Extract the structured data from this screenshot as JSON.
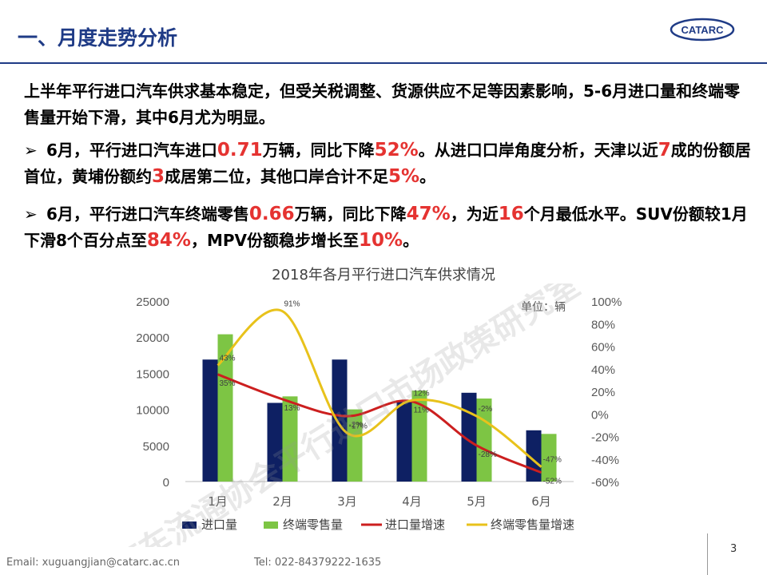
{
  "header": {
    "title": "一、月度走势分析",
    "logo_text": "CATARC"
  },
  "paragraphs": {
    "p1": "上半年平行进口汽车供求基本稳定，但受关税调整、货源供应不足等因素影响，5-6月进口量和终端零售量开始下滑，其中6月尤为明显。",
    "p2": {
      "bullet": "➢",
      "t1": "6月，平行进口汽车进口",
      "h1": "0.71",
      "t2": "万辆，同比下降",
      "h2": "52%",
      "t3": "。从进口口岸角度分析，天津以近",
      "h3": "7",
      "t4": "成的份额居首位，黄埔份额约",
      "h4": "3",
      "t5": "成居第二位，其他口岸合计不足",
      "h5": "5%",
      "t6": "。"
    },
    "p3": {
      "bullet": "➢",
      "t1": "6月，平行进口汽车终端零售",
      "h1": "0.66",
      "t2": "万辆，同比下降",
      "h2": "47%",
      "t3": "，为近",
      "h3": "16",
      "t4": "个月最低水平。SUV份额较1月下滑8个百分点至",
      "h4": "84%",
      "t5": "，MPV份额稳步增长至",
      "h5": "10%",
      "t6": "。"
    }
  },
  "chart_data": {
    "type": "bar",
    "title": "2018年各月平行进口汽车供求情况",
    "unit_note": "单位：辆",
    "categories": [
      "1月",
      "2月",
      "3月",
      "4月",
      "5月",
      "6月"
    ],
    "ylim": [
      0,
      25000
    ],
    "y_ticks": [
      "0",
      "5000",
      "10000",
      "15000",
      "20000",
      "25000"
    ],
    "y2lim": [
      -0.6,
      1.0
    ],
    "y2_ticks": [
      "-60%",
      "-40%",
      "-20%",
      "0%",
      "20%",
      "40%",
      "60%",
      "80%",
      "100%"
    ],
    "series": [
      {
        "name": "进口量",
        "kind": "bar",
        "axis": "left",
        "color": "#0e2063",
        "values": [
          16900,
          10900,
          16900,
          11000,
          12300,
          7100
        ]
      },
      {
        "name": "终端零售量",
        "kind": "bar",
        "axis": "left",
        "color": "#7dc544",
        "values": [
          20400,
          11800,
          10000,
          12600,
          11500,
          6600
        ]
      },
      {
        "name": "进口量增速",
        "kind": "line",
        "axis": "right",
        "color": "#cc1f1f",
        "values": [
          0.35,
          0.13,
          -0.02,
          0.11,
          -0.28,
          -0.52
        ],
        "labels": [
          "35%",
          "13%",
          "-2%",
          "11%",
          "-28%",
          "-52%"
        ]
      },
      {
        "name": "终端零售量增速",
        "kind": "line",
        "axis": "right",
        "color": "#e8c21b",
        "values": [
          0.43,
          0.91,
          -0.17,
          0.12,
          -0.02,
          -0.47
        ],
        "labels": [
          "43%",
          "91%",
          "-17%",
          "12%",
          "-2%",
          "-47%"
        ]
      }
    ],
    "legend_position": "bottom",
    "watermark": "汽车流通协会平行进口市场政策研究室"
  },
  "footer": {
    "email": "Email: xuguangjian@catarc.ac.cn",
    "tel": "Tel: 022-84379222-1635",
    "page": "3"
  }
}
